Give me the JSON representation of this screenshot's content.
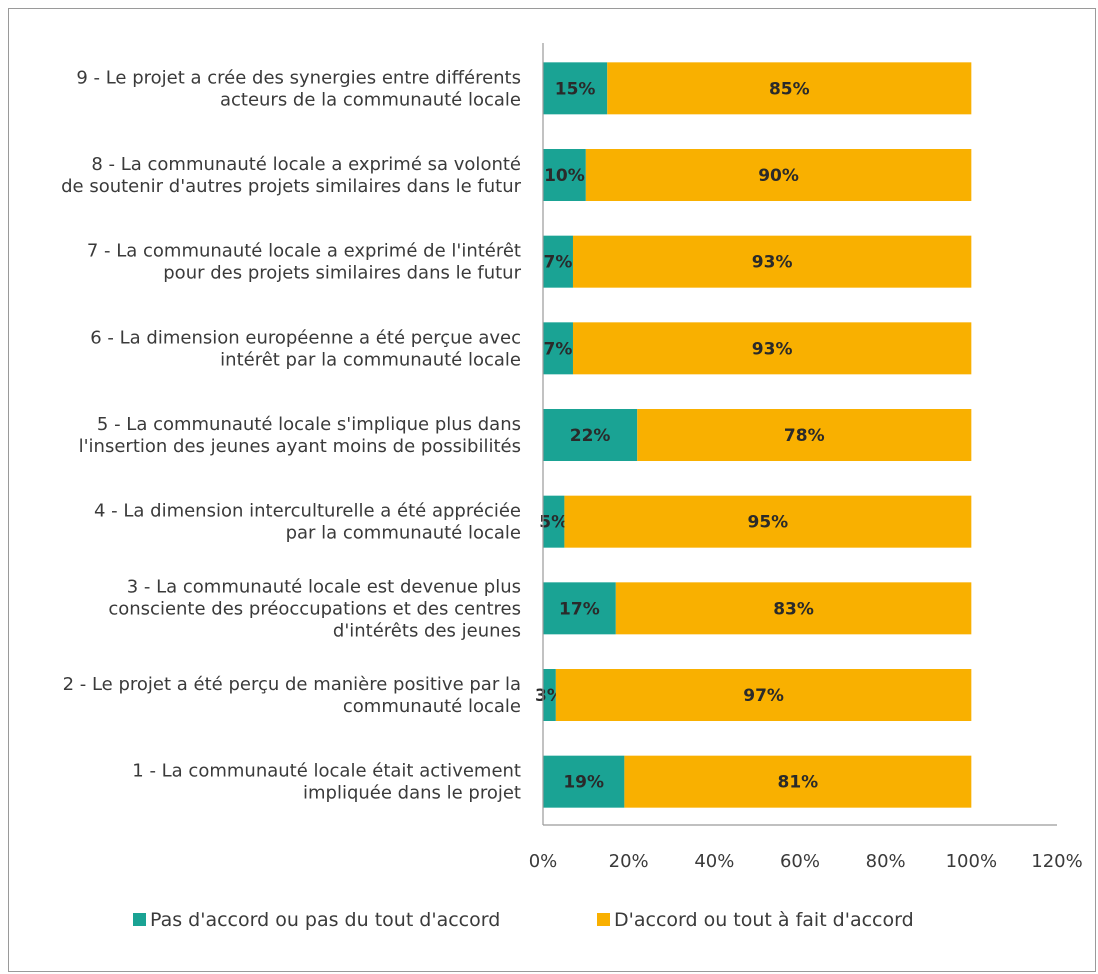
{
  "chart_data": {
    "type": "bar",
    "orientation": "horizontal",
    "stacked": true,
    "categories": [
      [
        "9 - Le projet a crée des synergies entre différents",
        "acteurs de la communauté locale"
      ],
      [
        "8 - La communauté locale a exprimé sa volonté",
        "de soutenir d'autres projets similaires dans le futur"
      ],
      [
        "7 - La communauté locale a exprimé de l'intérêt",
        "pour des projets similaires dans le futur"
      ],
      [
        "6 - La dimension européenne a été perçue avec",
        "intérêt par la communauté locale"
      ],
      [
        "5 - La communauté locale s'implique plus dans",
        "l'insertion des jeunes ayant moins de possibilités"
      ],
      [
        "4 - La dimension interculturelle a été appréciée",
        "par la communauté locale"
      ],
      [
        "3 - La communauté locale est devenue plus",
        "consciente des préoccupations et des centres",
        "d'intérêts des jeunes"
      ],
      [
        "2 - Le projet a été perçu de manière positive par la",
        "communauté locale"
      ],
      [
        "1 - La communauté locale était activement",
        "impliquée dans le projet"
      ]
    ],
    "series": [
      {
        "name": "Pas d'accord ou pas du tout d'accord",
        "color": "#1aa394",
        "values": [
          15,
          10,
          7,
          7,
          22,
          5,
          17,
          3,
          19
        ],
        "labels": [
          "15%",
          "10%",
          "7%",
          "7%",
          "22%",
          "5%",
          "17%",
          "3%",
          "19%"
        ]
      },
      {
        "name": "D'accord ou tout à fait d'accord",
        "color": "#f9b000",
        "values": [
          85,
          90,
          93,
          93,
          78,
          95,
          83,
          97,
          81
        ],
        "labels": [
          "85%",
          "90%",
          "93%",
          "93%",
          "78%",
          "95%",
          "83%",
          "97%",
          "81%"
        ]
      }
    ],
    "x_ticks": [
      "0%",
      "20%",
      "40%",
      "60%",
      "80%",
      "100%",
      "120%"
    ],
    "xlim": [
      0,
      120
    ],
    "grid": false,
    "legend_position": "bottom"
  }
}
